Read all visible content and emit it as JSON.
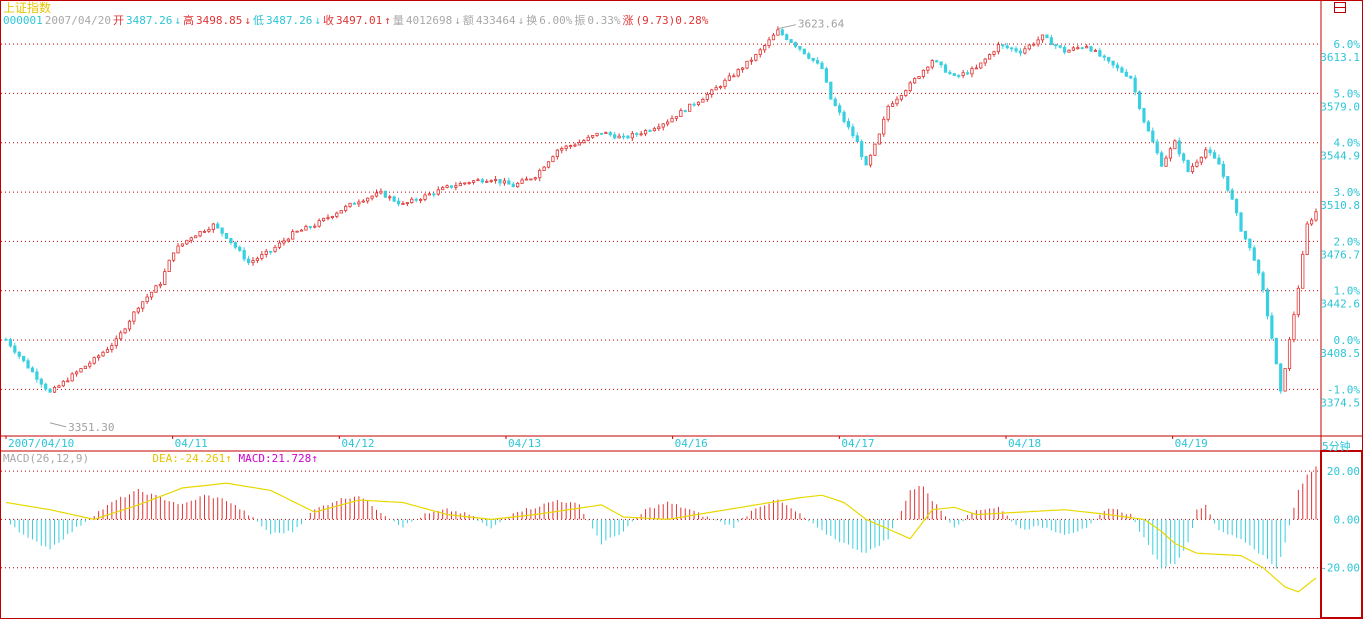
{
  "header": {
    "index_name": "上证指数",
    "code": "000001",
    "date": "2007/04/20",
    "open_label": "开",
    "open": "3487.26",
    "open_arrow": "↓",
    "high_label": "高",
    "high": "3498.85",
    "high_arrow": "↓",
    "low_label": "低",
    "low": "3487.26",
    "low_arrow": "↓",
    "close_label": "收",
    "close": "3497.01",
    "close_arrow": "↑",
    "volume_label": "量",
    "volume": "4012698",
    "volume_arrow": "↓",
    "amount_label": "额",
    "amount": "433464",
    "amount_arrow": "↓",
    "turnover_label": "换",
    "turnover": "6.00%",
    "amplitude_label": "振",
    "amplitude": "0.33%",
    "change_label": "涨",
    "change": "(9.73)0.28%"
  },
  "macd_header": {
    "name": "MACD(26,12,9)",
    "dea": "DEA:-24.261",
    "dea_arrow": "↑",
    "macd": "MACD:21.728",
    "macd_arrow": "↑"
  },
  "period": "5分钟",
  "colors": {
    "up": "#e03434",
    "down": "#38d0e0",
    "border": "#c00000",
    "grid": "#c00000",
    "axis_text": "#2cc6d6",
    "dea_line": "#e8d800",
    "annotation": "#a0a0a0"
  },
  "chart_data": [
    {
      "type": "candlestick",
      "title": "上证指数",
      "base_price": 3408.5,
      "ylim": [
        3345,
        3640
      ],
      "y_ticks_price": [
        "3613.1",
        "3579.0",
        "3544.9",
        "3510.8",
        "3476.7",
        "3442.6",
        "3408.5",
        "3374.5"
      ],
      "y_ticks_percent": [
        "6.0%",
        "5.0%",
        "4.0%",
        "3.0%",
        "2.0%",
        "1.0%",
        "0.0%",
        "-1.0%"
      ],
      "x_labels": [
        "2007/04/10",
        "04/11",
        "04/12",
        "04/13",
        "04/16",
        "04/17",
        "04/18",
        "04/19"
      ],
      "annotations": [
        {
          "text": "3623.64",
          "value": 3623.64,
          "type": "high"
        },
        {
          "text": "3351.30",
          "value": 3351.3,
          "type": "low"
        }
      ],
      "close_path": [
        [
          0,
          3409
        ],
        [
          5,
          3390
        ],
        [
          10,
          3372
        ],
        [
          15,
          3384
        ],
        [
          20,
          3395
        ],
        [
          25,
          3408
        ],
        [
          30,
          3432
        ],
        [
          35,
          3448
        ],
        [
          38,
          3470
        ],
        [
          42,
          3480
        ],
        [
          47,
          3488
        ],
        [
          50,
          3480
        ],
        [
          55,
          3462
        ],
        [
          60,
          3470
        ],
        [
          65,
          3482
        ],
        [
          70,
          3488
        ],
        [
          75,
          3497
        ],
        [
          80,
          3505
        ],
        [
          85,
          3510
        ],
        [
          90,
          3502
        ],
        [
          95,
          3508
        ],
        [
          100,
          3514
        ],
        [
          105,
          3518
        ],
        [
          110,
          3520
        ],
        [
          115,
          3515
        ],
        [
          120,
          3522
        ],
        [
          125,
          3540
        ],
        [
          130,
          3545
        ],
        [
          135,
          3552
        ],
        [
          140,
          3548
        ],
        [
          145,
          3553
        ],
        [
          150,
          3560
        ],
        [
          155,
          3570
        ],
        [
          160,
          3580
        ],
        [
          165,
          3592
        ],
        [
          170,
          3605
        ],
        [
          175,
          3622
        ],
        [
          180,
          3610
        ],
        [
          185,
          3596
        ],
        [
          187,
          3575
        ],
        [
          190,
          3560
        ],
        [
          193,
          3545
        ],
        [
          195,
          3528
        ],
        [
          198,
          3550
        ],
        [
          200,
          3570
        ],
        [
          205,
          3585
        ],
        [
          210,
          3602
        ],
        [
          215,
          3590
        ],
        [
          220,
          3596
        ],
        [
          225,
          3612
        ],
        [
          230,
          3608
        ],
        [
          235,
          3618
        ],
        [
          240,
          3608
        ],
        [
          245,
          3612
        ],
        [
          250,
          3600
        ],
        [
          255,
          3590
        ],
        [
          258,
          3560
        ],
        [
          262,
          3530
        ],
        [
          265,
          3545
        ],
        [
          268,
          3525
        ],
        [
          272,
          3540
        ],
        [
          275,
          3530
        ],
        [
          278,
          3505
        ],
        [
          280,
          3485
        ],
        [
          283,
          3465
        ],
        [
          285,
          3442
        ],
        [
          287,
          3410
        ],
        [
          289,
          3372
        ],
        [
          291,
          3408
        ],
        [
          293,
          3445
        ],
        [
          295,
          3488
        ],
        [
          297,
          3497
        ]
      ]
    },
    {
      "type": "macd",
      "series": [
        {
          "name": "DEA",
          "values": [
            [
              0,
              7
            ],
            [
              10,
              4
            ],
            [
              20,
              0
            ],
            [
              30,
              6
            ],
            [
              40,
              13
            ],
            [
              50,
              15
            ],
            [
              60,
              12
            ],
            [
              70,
              3
            ],
            [
              80,
              8
            ],
            [
              90,
              7
            ],
            [
              100,
              2
            ],
            [
              110,
              0
            ],
            [
              120,
              2
            ],
            [
              135,
              6
            ],
            [
              140,
              1
            ],
            [
              150,
              0
            ],
            [
              160,
              3
            ],
            [
              170,
              6
            ],
            [
              180,
              9
            ],
            [
              185,
              10
            ],
            [
              190,
              7
            ],
            [
              195,
              0
            ],
            [
              200,
              -4
            ],
            [
              205,
              -8
            ],
            [
              210,
              4
            ],
            [
              215,
              5
            ],
            [
              220,
              2
            ],
            [
              230,
              3
            ],
            [
              240,
              4
            ],
            [
              250,
              2
            ],
            [
              258,
              0
            ],
            [
              262,
              -5
            ],
            [
              265,
              -10
            ],
            [
              270,
              -14
            ],
            [
              280,
              -15
            ],
            [
              285,
              -20
            ],
            [
              290,
              -28
            ],
            [
              293,
              -30
            ],
            [
              297,
              -24.261
            ]
          ]
        },
        {
          "name": "MACD",
          "values": [
            [
              0,
              0
            ],
            [
              5,
              -8
            ],
            [
              10,
              -12
            ],
            [
              15,
              -5
            ],
            [
              20,
              2
            ],
            [
              25,
              8
            ],
            [
              30,
              12
            ],
            [
              35,
              9
            ],
            [
              40,
              6
            ],
            [
              45,
              10
            ],
            [
              50,
              8
            ],
            [
              55,
              2
            ],
            [
              60,
              -6
            ],
            [
              65,
              -5
            ],
            [
              70,
              4
            ],
            [
              75,
              8
            ],
            [
              80,
              10
            ],
            [
              85,
              3
            ],
            [
              90,
              -3
            ],
            [
              95,
              2
            ],
            [
              100,
              4
            ],
            [
              105,
              2
            ],
            [
              110,
              -4
            ],
            [
              115,
              3
            ],
            [
              120,
              5
            ],
            [
              125,
              8
            ],
            [
              130,
              6
            ],
            [
              135,
              -10
            ],
            [
              140,
              -5
            ],
            [
              145,
              4
            ],
            [
              150,
              7
            ],
            [
              155,
              4
            ],
            [
              160,
              0
            ],
            [
              165,
              -3
            ],
            [
              170,
              5
            ],
            [
              175,
              8
            ],
            [
              180,
              2
            ],
            [
              185,
              -5
            ],
            [
              190,
              -10
            ],
            [
              195,
              -14
            ],
            [
              200,
              -8
            ],
            [
              205,
              12
            ],
            [
              208,
              14
            ],
            [
              210,
              8
            ],
            [
              215,
              -3
            ],
            [
              220,
              4
            ],
            [
              225,
              5
            ],
            [
              230,
              -4
            ],
            [
              235,
              -3
            ],
            [
              240,
              -6
            ],
            [
              245,
              -4
            ],
            [
              250,
              5
            ],
            [
              255,
              2
            ],
            [
              258,
              -8
            ],
            [
              262,
              -20
            ],
            [
              265,
              -18
            ],
            [
              268,
              -10
            ],
            [
              270,
              4
            ],
            [
              272,
              6
            ],
            [
              275,
              -5
            ],
            [
              280,
              -8
            ],
            [
              285,
              -15
            ],
            [
              288,
              -20
            ],
            [
              290,
              -10
            ],
            [
              293,
              12
            ],
            [
              295,
              18
            ],
            [
              297,
              21.728
            ]
          ]
        }
      ],
      "ylim": [
        -40,
        25
      ],
      "y_ticks": [
        "20.00",
        "0.00",
        "-20.00"
      ]
    }
  ]
}
